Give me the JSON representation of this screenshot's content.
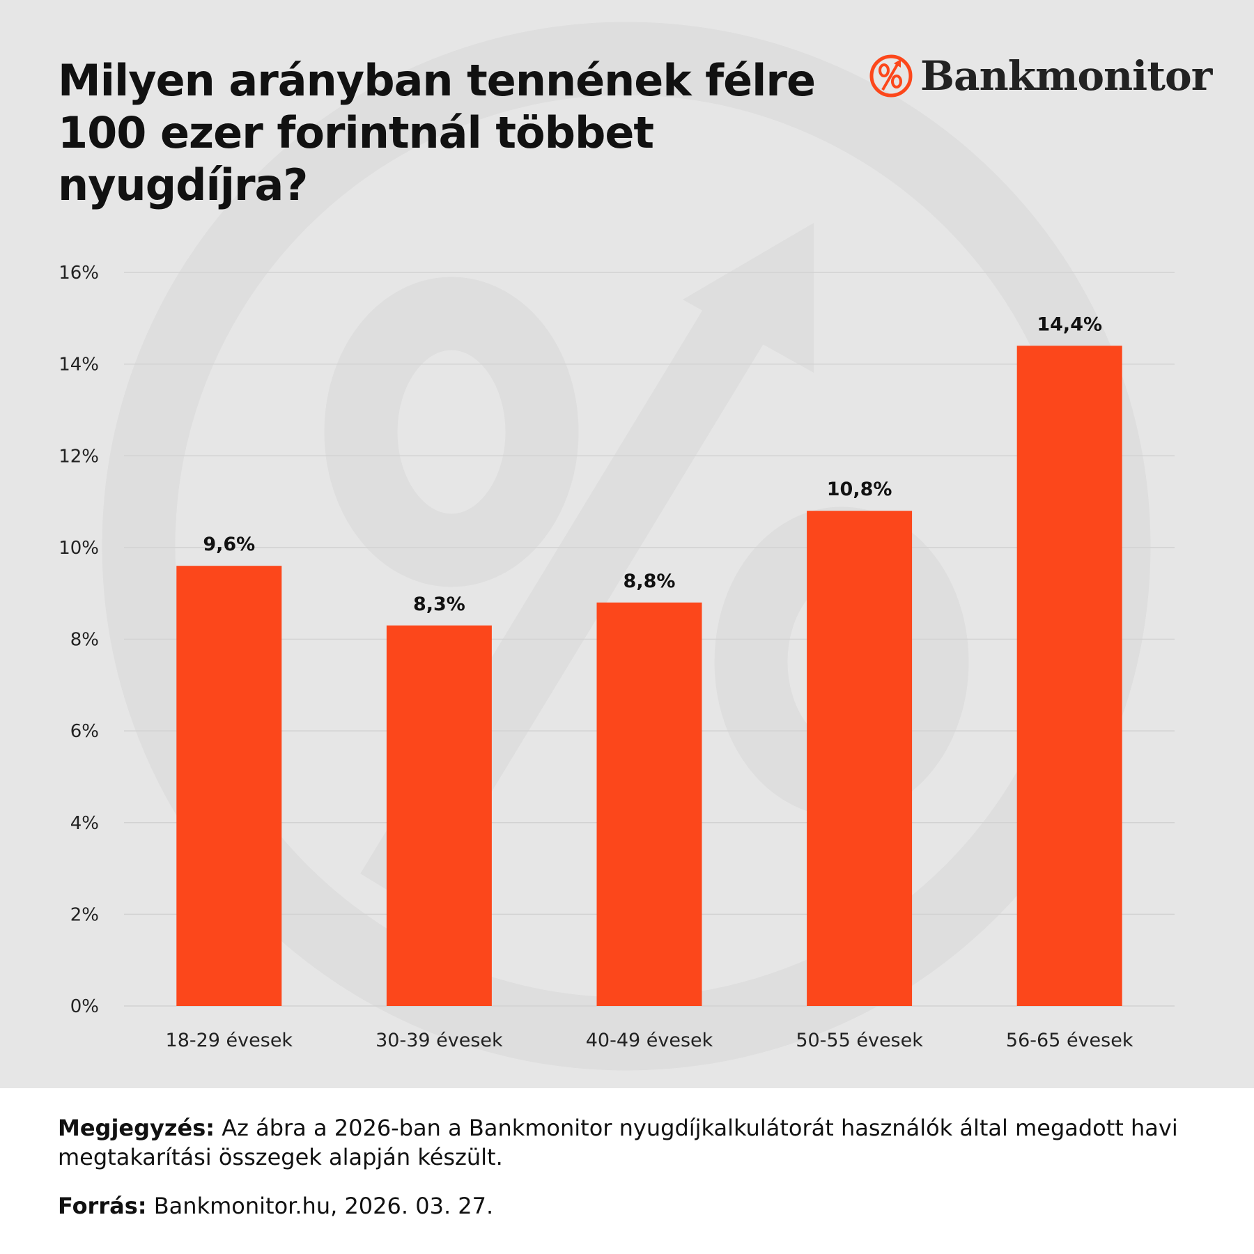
{
  "title": "Milyen arányban tennének félre 100 ezer forintnál többet nyugdíjra?",
  "logo": {
    "text": "Bankmonitor",
    "icon": "percent-arrow-icon"
  },
  "colors": {
    "bar": "#fc471b",
    "background": "#e6e6e6",
    "accent": "#fc471b"
  },
  "chart_data": {
    "type": "bar",
    "title": "Milyen arányban tennének félre 100 ezer forintnál többet nyugdíjra?",
    "categories": [
      "18-29 évesek",
      "30-39 évesek",
      "40-49 évesek",
      "50-55 évesek",
      "56-65 évesek"
    ],
    "values": [
      9.6,
      8.3,
      8.8,
      10.8,
      14.4
    ],
    "value_labels": [
      "9,6%",
      "8,3%",
      "8,8%",
      "10,8%",
      "14,4%"
    ],
    "yticks": [
      "0%",
      "2%",
      "4%",
      "6%",
      "8%",
      "10%",
      "12%",
      "14%",
      "16%"
    ],
    "ylim": [
      0,
      16
    ],
    "xlabel": "",
    "ylabel": "",
    "grid": true,
    "legend": "none"
  },
  "footer": {
    "note_label": "Megjegyzés:",
    "note_text": " Az ábra a 2026-ban a Bankmonitor nyugdíjkalkulátorát használók által megadott havi megtakarítási összegek alapján készült.",
    "source_label": "Forrás:",
    "source_text": " Bankmonitor.hu, 2026. 03. 27."
  }
}
